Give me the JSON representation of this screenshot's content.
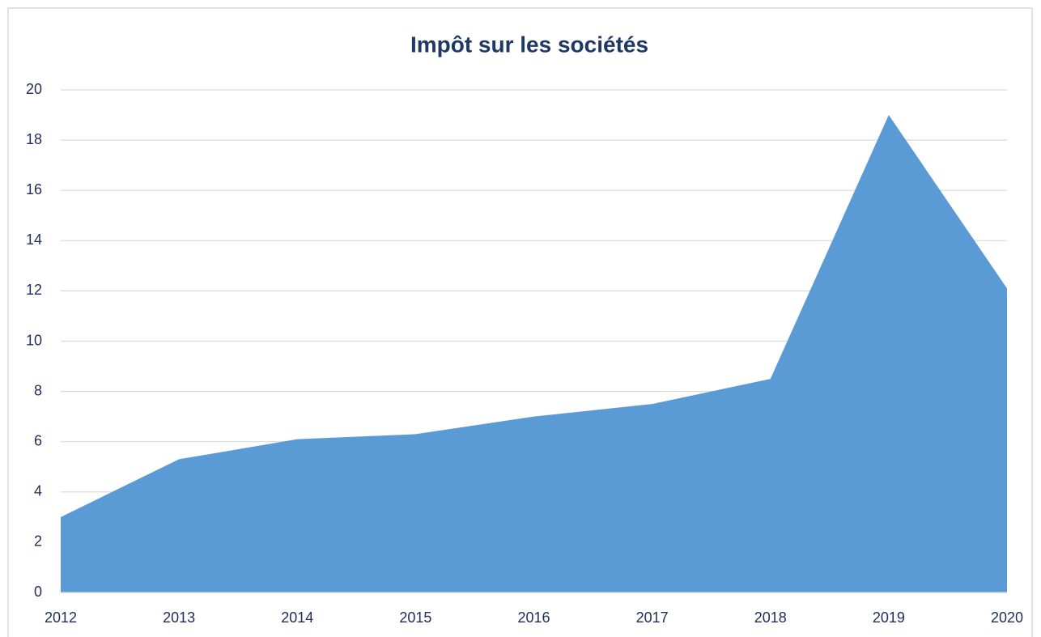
{
  "chart_data": {
    "type": "area",
    "title": "Impôt sur les sociétés",
    "categories": [
      "2012",
      "2013",
      "2014",
      "2015",
      "2016",
      "2017",
      "2018",
      "2019",
      "2020"
    ],
    "values": [
      3,
      5.3,
      6.1,
      6.3,
      7,
      7.5,
      8.5,
      19,
      12.1
    ],
    "color": "#5b9bd5",
    "ylim": [
      0,
      20
    ],
    "yticks": [
      0,
      2,
      4,
      6,
      8,
      10,
      12,
      14,
      16,
      18,
      20
    ],
    "grid": true
  }
}
